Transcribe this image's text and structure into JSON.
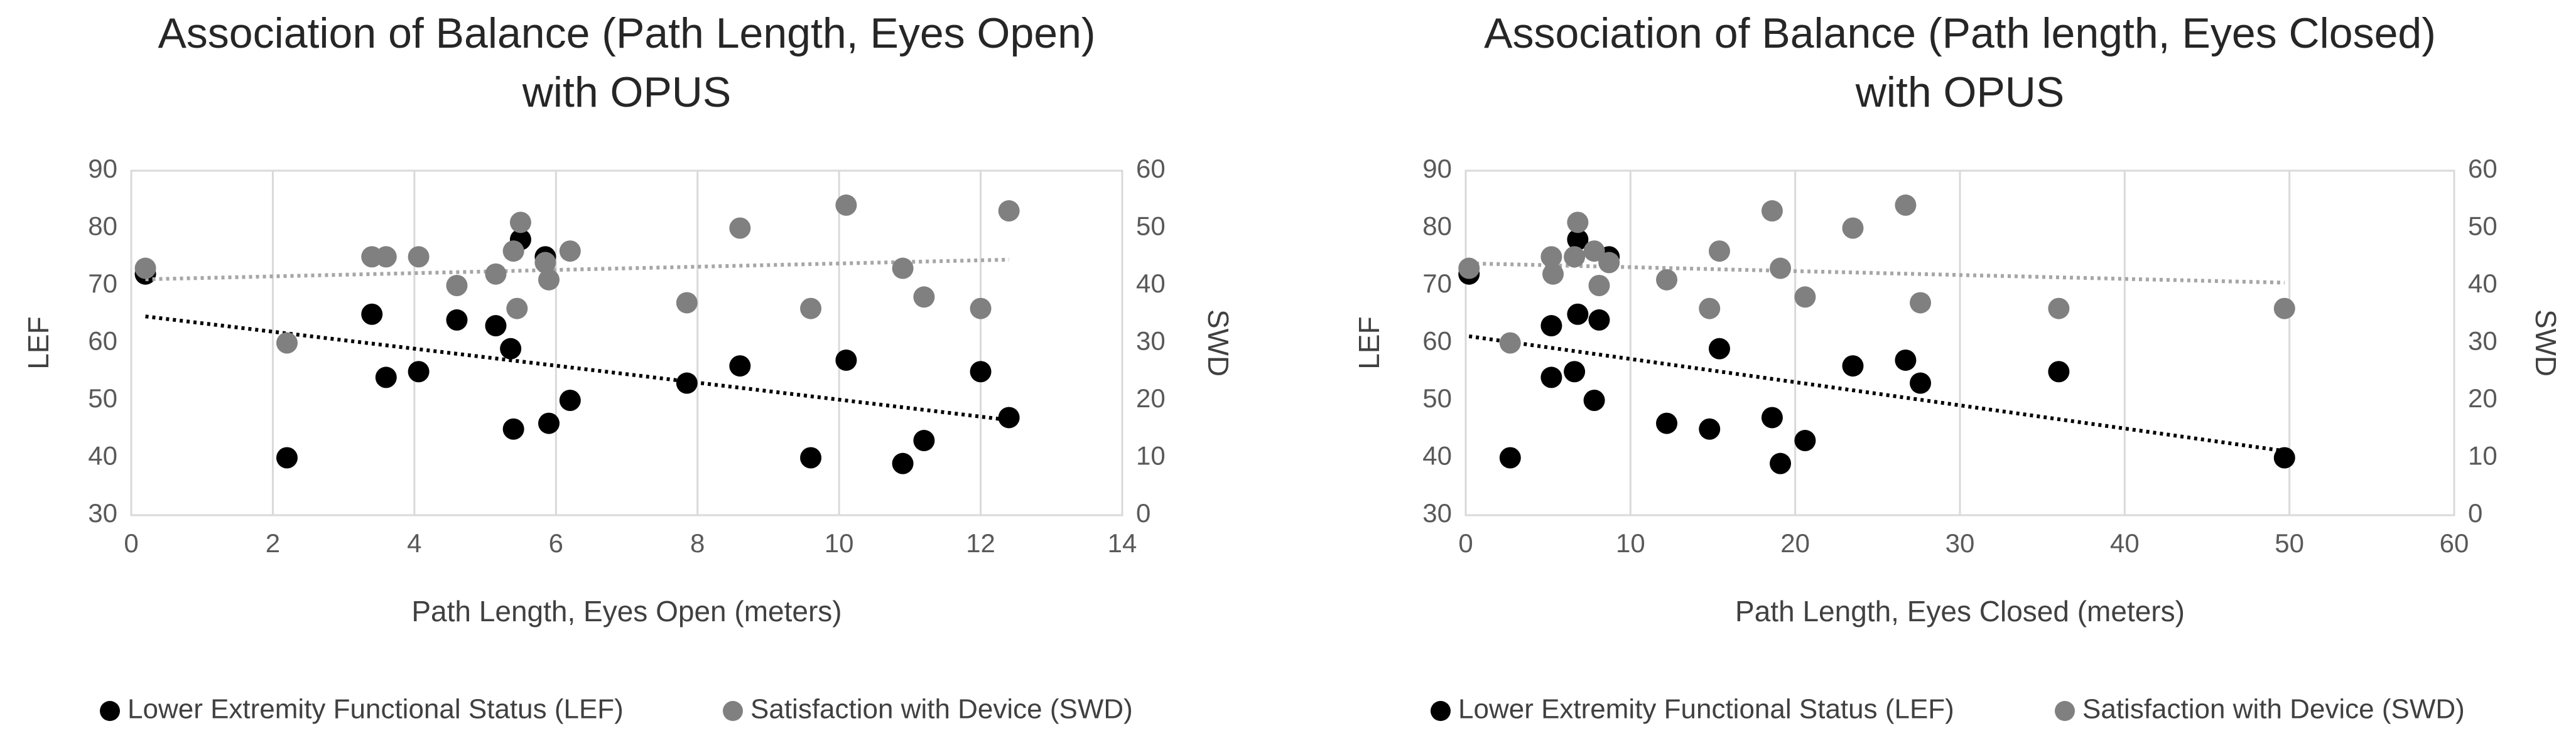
{
  "chart_data": [
    {
      "type": "scatter",
      "title": [
        "Association of Balance (Path Length, Eyes Open)",
        "with OPUS"
      ],
      "xlabel": "Path Length, Eyes Open (meters)",
      "ylabel": "LEF",
      "y2label": "SWD",
      "xlim": [
        0,
        14
      ],
      "xticks": [
        0,
        2,
        4,
        6,
        8,
        10,
        12,
        14
      ],
      "ylim": [
        30,
        90
      ],
      "yticks": [
        30,
        40,
        50,
        60,
        70,
        80,
        90
      ],
      "y2lim": [
        0,
        60
      ],
      "y2ticks": [
        0,
        10,
        20,
        30,
        40,
        50,
        60
      ],
      "grid": "x",
      "legend": "bottom",
      "trendline": "linear",
      "series": [
        {
          "name": "Lower Extremity Functional Status (LEF)",
          "color": "#000000",
          "axis": "y",
          "x": [
            0.2,
            2.2,
            3.4,
            3.6,
            4.06,
            4.6,
            5.15,
            5.36,
            5.4,
            5.5,
            5.85,
            5.9,
            6.2,
            7.85,
            8.6,
            9.6,
            10.1,
            10.9,
            11.2,
            12.0,
            12.4
          ],
          "values": [
            72,
            40,
            65,
            54,
            55,
            64,
            63,
            59,
            45,
            78,
            75,
            46,
            50,
            53,
            56,
            40,
            57,
            39,
            43,
            55,
            47
          ]
        },
        {
          "name": "Satisfaction with Device (SWD)",
          "color": "#808080",
          "axis": "y2",
          "x": [
            0.2,
            2.2,
            3.4,
            3.6,
            4.06,
            4.6,
            5.15,
            5.4,
            5.45,
            5.5,
            5.85,
            5.9,
            6.2,
            7.85,
            8.6,
            9.6,
            10.1,
            10.9,
            11.2,
            12.0,
            12.4
          ],
          "values": [
            43,
            30,
            45,
            45,
            45,
            40,
            42,
            46,
            36,
            51,
            44,
            41,
            46,
            37,
            50,
            36,
            54,
            43,
            38,
            36,
            53
          ]
        }
      ]
    },
    {
      "type": "scatter",
      "title": [
        "Association of Balance (Path length, Eyes Closed)",
        "with OPUS"
      ],
      "xlabel": "Path Length, Eyes Closed (meters)",
      "ylabel": "LEF",
      "y2label": "SWD",
      "xlim": [
        0,
        60
      ],
      "xticks": [
        0,
        10,
        20,
        30,
        40,
        50,
        60
      ],
      "ylim": [
        30,
        90
      ],
      "yticks": [
        30,
        40,
        50,
        60,
        70,
        80,
        90
      ],
      "y2lim": [
        0,
        60
      ],
      "y2ticks": [
        0,
        10,
        20,
        30,
        40,
        50,
        60
      ],
      "grid": "x",
      "legend": "bottom",
      "trendline": "linear",
      "series": [
        {
          "name": "Lower Extremity Functional Status (LEF)",
          "color": "#000000",
          "axis": "y",
          "x": [
            0.2,
            2.7,
            5.2,
            5.2,
            6.6,
            6.8,
            6.8,
            7.8,
            8.1,
            8.7,
            12.2,
            14.8,
            15.4,
            18.6,
            19.1,
            20.6,
            23.5,
            26.7,
            27.6,
            36.0,
            49.7
          ],
          "values": [
            72,
            40,
            63,
            54,
            55,
            78,
            65,
            50,
            64,
            75,
            46,
            45,
            59,
            47,
            39,
            43,
            56,
            57,
            53,
            55,
            40
          ]
        },
        {
          "name": "Satisfaction with Device (SWD)",
          "color": "#808080",
          "axis": "y2",
          "x": [
            0.2,
            2.7,
            5.2,
            5.3,
            6.6,
            6.8,
            7.8,
            8.1,
            8.7,
            12.2,
            14.8,
            15.4,
            18.6,
            19.1,
            20.6,
            23.5,
            26.7,
            27.6,
            36.0,
            49.7
          ],
          "values": [
            43,
            30,
            45,
            42,
            45,
            51,
            46,
            40,
            44,
            41,
            36,
            46,
            53,
            43,
            38,
            50,
            54,
            37,
            36,
            36
          ]
        }
      ]
    }
  ]
}
